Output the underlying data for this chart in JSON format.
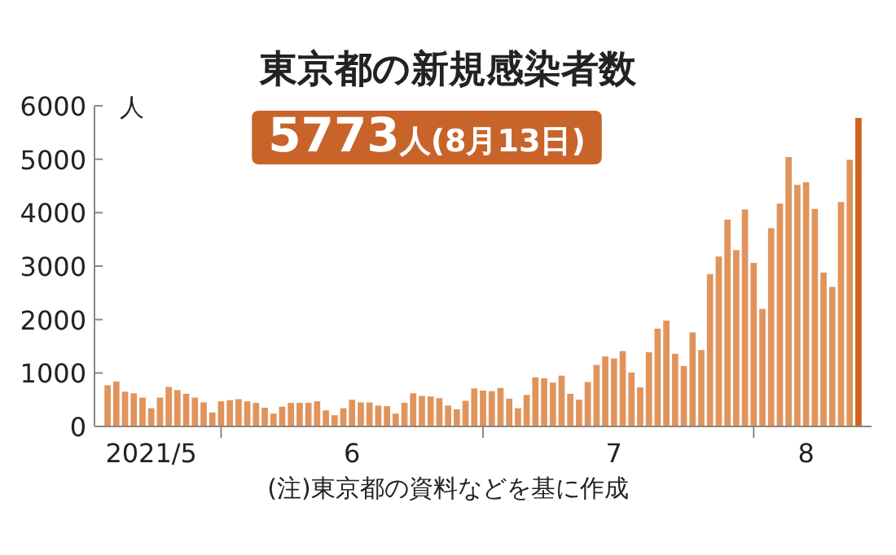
{
  "chart_data": {
    "type": "bar",
    "title": "東京都の新規感染者数",
    "subtitle": "5773人(8月13日)",
    "ylabel": "人",
    "annotations": [
      "(注)東京都の資料などを基に作成"
    ],
    "x": [
      "2021-05-19",
      "2021-05-20",
      "2021-05-21",
      "2021-05-22",
      "2021-05-23",
      "2021-05-24",
      "2021-05-25",
      "2021-05-26",
      "2021-05-27",
      "2021-05-28",
      "2021-05-29",
      "2021-05-30",
      "2021-05-31",
      "2021-06-01",
      "2021-06-02",
      "2021-06-03",
      "2021-06-04",
      "2021-06-05",
      "2021-06-06",
      "2021-06-07",
      "2021-06-08",
      "2021-06-09",
      "2021-06-10",
      "2021-06-11",
      "2021-06-12",
      "2021-06-13",
      "2021-06-14",
      "2021-06-15",
      "2021-06-16",
      "2021-06-17",
      "2021-06-18",
      "2021-06-19",
      "2021-06-20",
      "2021-06-21",
      "2021-06-22",
      "2021-06-23",
      "2021-06-24",
      "2021-06-25",
      "2021-06-26",
      "2021-06-27",
      "2021-06-28",
      "2021-06-29",
      "2021-06-30",
      "2021-07-01",
      "2021-07-02",
      "2021-07-03",
      "2021-07-04",
      "2021-07-05",
      "2021-07-06",
      "2021-07-07",
      "2021-07-08",
      "2021-07-09",
      "2021-07-10",
      "2021-07-11",
      "2021-07-12",
      "2021-07-13",
      "2021-07-14",
      "2021-07-15",
      "2021-07-16",
      "2021-07-17",
      "2021-07-18",
      "2021-07-19",
      "2021-07-20",
      "2021-07-21",
      "2021-07-22",
      "2021-07-23",
      "2021-07-24",
      "2021-07-25",
      "2021-07-26",
      "2021-07-27",
      "2021-07-28",
      "2021-07-29",
      "2021-07-30",
      "2021-07-31",
      "2021-08-01",
      "2021-08-02",
      "2021-08-03",
      "2021-08-04",
      "2021-08-05",
      "2021-08-06",
      "2021-08-07",
      "2021-08-08",
      "2021-08-09",
      "2021-08-10",
      "2021-08-11",
      "2021-08-12",
      "2021-08-13"
    ],
    "values": [
      770,
      840,
      650,
      620,
      540,
      340,
      540,
      740,
      680,
      610,
      540,
      450,
      260,
      470,
      490,
      510,
      470,
      440,
      350,
      240,
      370,
      440,
      440,
      440,
      470,
      300,
      210,
      340,
      500,
      450,
      450,
      390,
      380,
      240,
      440,
      620,
      570,
      560,
      530,
      390,
      320,
      480,
      710,
      670,
      660,
      720,
      520,
      340,
      590,
      920,
      900,
      820,
      950,
      610,
      500,
      830,
      1150,
      1310,
      1270,
      1410,
      1010,
      730,
      1390,
      1830,
      1980,
      1360,
      1130,
      1760,
      1430,
      2850,
      3180,
      3870,
      3300,
      4060,
      3060,
      2200,
      3710,
      4170,
      5040,
      4520,
      4570,
      4070,
      2880,
      2610,
      4200,
      4990,
      5773
    ],
    "colors": [
      "#e0945c",
      "#e0945c",
      "#e0945c",
      "#e0945c",
      "#e0945c",
      "#e0945c",
      "#e0945c",
      "#e0945c",
      "#e0945c",
      "#e0945c",
      "#e0945c",
      "#e0945c",
      "#e0945c",
      "#e0945c",
      "#e0945c",
      "#e0945c",
      "#e0945c",
      "#e0945c",
      "#e0945c",
      "#e0945c",
      "#e0945c",
      "#e0945c",
      "#e0945c",
      "#e0945c",
      "#e0945c",
      "#e0945c",
      "#e0945c",
      "#e0945c",
      "#e0945c",
      "#e0945c",
      "#e0945c",
      "#e0945c",
      "#e0945c",
      "#e0945c",
      "#e0945c",
      "#e0945c",
      "#e0945c",
      "#e0945c",
      "#e0945c",
      "#e0945c",
      "#e0945c",
      "#e0945c",
      "#e0945c",
      "#e0945c",
      "#e0945c",
      "#e0945c",
      "#e0945c",
      "#e0945c",
      "#e0945c",
      "#e0945c",
      "#e0945c",
      "#e0945c",
      "#e0945c",
      "#e0945c",
      "#e0945c",
      "#e0945c",
      "#e0945c",
      "#e0945c",
      "#e0945c",
      "#e0945c",
      "#e0945c",
      "#e0945c",
      "#e0945c",
      "#e0945c",
      "#e0945c",
      "#e0945c",
      "#e0945c",
      "#e0945c",
      "#e0945c",
      "#e0945c",
      "#e0945c",
      "#e0945c",
      "#e0945c",
      "#e0945c",
      "#e0945c",
      "#e0945c",
      "#e0945c",
      "#e0945c",
      "#e0945c",
      "#e0945c",
      "#e0945c",
      "#e0945c",
      "#e0945c",
      "#e0945c",
      "#e0945c",
      "#e0945c",
      "#d0621f"
    ],
    "xlim": [
      "2021-05-17T12:00",
      "2021-08-14T12:00"
    ],
    "xticks": [
      {
        "value": "2021-05-24",
        "label": "2021/5"
      },
      {
        "value": "2021-06-01",
        "label": null
      },
      {
        "value": "2021-06-16",
        "label": "6"
      },
      {
        "value": "2021-07-01",
        "label": null
      },
      {
        "value": "2021-07-16",
        "label": "7"
      },
      {
        "value": "2021-08-01",
        "label": null
      },
      {
        "value": "2021-08-07",
        "label": "8"
      }
    ],
    "ylim": [
      0,
      6000
    ],
    "yticks": [
      0,
      1000,
      2000,
      3000,
      4000,
      5000,
      6000
    ],
    "grid": false
  }
}
